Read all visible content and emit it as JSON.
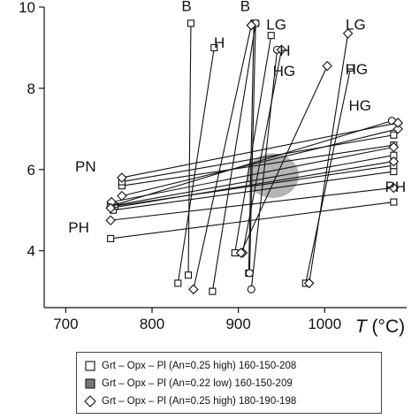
{
  "chart_data": {
    "type": "scatter",
    "title": "",
    "xlabel": "T (°C)",
    "xlabel_prefix": "T",
    "xlabel_unit": " (°C)",
    "ylabel": "",
    "xlim": [
      675,
      1095
    ],
    "ylim": [
      2.6,
      10
    ],
    "xticks": [
      700,
      800,
      900,
      1000
    ],
    "yticks": [
      4,
      6,
      8,
      10
    ],
    "grid": false,
    "legend_position": "bottom",
    "colors": {
      "line": "#111111",
      "blob": "#b5b5b5",
      "text": "#111111"
    },
    "series": [
      {
        "name": "Grt – Opx – Pl (An=0.25 high) 160-150-208",
        "marker": "square",
        "segments": [
          [
            [
              752,
              4.3
            ],
            [
              1080,
              5.2
            ]
          ],
          [
            [
              755,
              5.0
            ],
            [
              1080,
              5.95
            ]
          ],
          [
            [
              757,
              5.1
            ],
            [
              1080,
              6.1
            ]
          ],
          [
            [
              765,
              5.6
            ],
            [
              1080,
              6.6
            ]
          ],
          [
            [
              765,
              5.7
            ],
            [
              1080,
              6.85
            ]
          ],
          [
            [
              752,
              5.1
            ],
            [
              1080,
              6.35
            ]
          ],
          [
            [
              842,
              3.4
            ],
            [
              845,
              9.6
            ]
          ],
          [
            [
              830,
              3.2
            ],
            [
              872,
              9.0
            ]
          ],
          [
            [
              870,
              3.0
            ],
            [
              920,
              9.6
            ]
          ],
          [
            [
              896,
              3.95
            ],
            [
              938,
              9.3
            ]
          ],
          [
            [
              912,
              3.45
            ],
            [
              918,
              9.6
            ]
          ],
          [
            [
              978,
              3.2
            ],
            [
              1030,
              8.5
            ]
          ]
        ]
      },
      {
        "name": "Grt – Opx – Pl (An=0.22 low) 160-150-209",
        "marker": "circle",
        "segments": [
          [
            [
              752,
              5.1
            ],
            [
              1078,
              7.2
            ]
          ],
          [
            [
              915,
              3.05
            ],
            [
              945,
              8.95
            ]
          ],
          [
            [
              913,
              3.45
            ],
            [
              920,
              9.6
            ]
          ]
        ]
      },
      {
        "name": "Grt – Opx – Pl (An=0.25 high) 180-190-198",
        "marker": "diamond",
        "segments": [
          [
            [
              752,
              4.75
            ],
            [
              1080,
              5.55
            ]
          ],
          [
            [
              753,
              5.2
            ],
            [
              1080,
              6.55
            ]
          ],
          [
            [
              765,
              5.35
            ],
            [
              1085,
              7.0
            ]
          ],
          [
            [
              765,
              5.8
            ],
            [
              1085,
              7.15
            ]
          ],
          [
            [
              752,
              5.05
            ],
            [
              1080,
              6.2
            ]
          ],
          [
            [
              848,
              3.05
            ],
            [
              915,
              9.55
            ]
          ],
          [
            [
              905,
              3.95
            ],
            [
              950,
              8.95
            ]
          ],
          [
            [
              982,
              3.2
            ],
            [
              1027,
              9.35
            ]
          ],
          [
            [
              903,
              3.95
            ],
            [
              1003,
              8.55
            ]
          ]
        ]
      }
    ],
    "shaded_region": {
      "cx": 940,
      "cy": 5.85,
      "rx": 30,
      "ry": 0.55
    },
    "annotations": [
      {
        "text": "B",
        "x": 840,
        "y": 9.9
      },
      {
        "text": "B",
        "x": 908,
        "y": 9.9
      },
      {
        "text": "H",
        "x": 878,
        "y": 9.0
      },
      {
        "text": "LG",
        "x": 944,
        "y": 9.45
      },
      {
        "text": "LG",
        "x": 1036,
        "y": 9.45
      },
      {
        "text": "H",
        "x": 954,
        "y": 8.8
      },
      {
        "text": "HG",
        "x": 953,
        "y": 8.3
      },
      {
        "text": "HG",
        "x": 1037,
        "y": 8.35
      },
      {
        "text": "HG",
        "x": 1041,
        "y": 7.45
      },
      {
        "text": "PN",
        "x": 723,
        "y": 5.95
      },
      {
        "text": "PH",
        "x": 1082,
        "y": 5.45
      },
      {
        "text": "PH",
        "x": 715,
        "y": 4.45
      }
    ]
  },
  "legend": {
    "items": [
      {
        "marker": "square",
        "label": "Grt – Opx – Pl (An=0.25 high) 160-150-208"
      },
      {
        "marker": "square-filled",
        "label": "Grt – Opx – Pl (An=0.22 low) 160-150-209"
      },
      {
        "marker": "diamond",
        "label": "Grt – Opx – Pl (An=0.25 high) 180-190-198"
      }
    ]
  }
}
